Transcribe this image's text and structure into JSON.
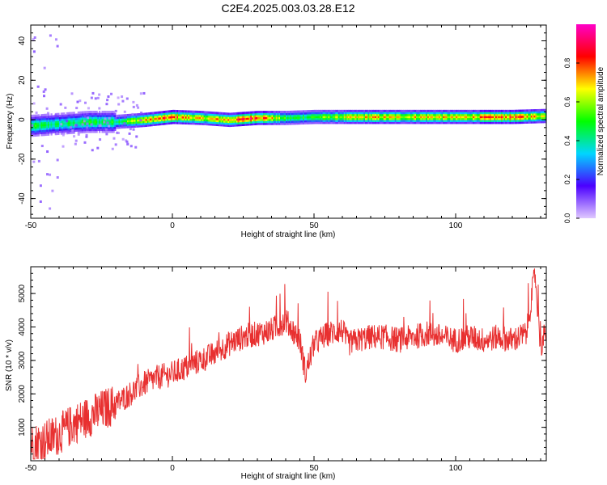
{
  "title": "C2E4.2025.003.03.28.E12",
  "chart_data": [
    {
      "type": "heatmap",
      "xlabel": "Height of straight line (km)",
      "ylabel": "Frequency (Hz)",
      "xlim": [
        -50,
        132
      ],
      "ylim": [
        -50,
        48
      ],
      "xticks": [
        -50,
        0,
        50,
        100
      ],
      "yticks": [
        -40,
        -20,
        0,
        20,
        40
      ],
      "colorbar": {
        "label": "Normalized spectral amplitude",
        "range": [
          0,
          1
        ],
        "ticks": [
          "0.0",
          "0.2",
          "0.4",
          "0.6",
          "0.8"
        ],
        "colors": [
          "#e0c8ff",
          "#4b00ff",
          "#00d6ff",
          "#00ff00",
          "#ffff00",
          "#ff0000",
          "#ff00c8"
        ]
      },
      "ridge": {
        "x": [
          -50,
          -40,
          -30,
          -20,
          -10,
          0,
          10,
          20,
          30,
          40,
          50,
          60,
          70,
          80,
          90,
          100,
          110,
          120,
          132
        ],
        "frequency": [
          -3,
          -2,
          -1,
          -1,
          0,
          1.5,
          1,
          0,
          1,
          1,
          1.5,
          1.5,
          1.5,
          1.5,
          1.5,
          1.5,
          1.5,
          1.5,
          2
        ],
        "amplitude": [
          0.5,
          0.45,
          0.5,
          0.5,
          0.75,
          0.85,
          0.7,
          0.8,
          0.95,
          0.5,
          0.55,
          0.65,
          0.75,
          0.7,
          0.75,
          0.7,
          0.8,
          0.85,
          0.7
        ]
      }
    },
    {
      "type": "line",
      "xlabel": "Height of straight line (km)",
      "ylabel": "SNR (10 * v/v)",
      "xlim": [
        -50,
        132
      ],
      "ylim": [
        0,
        5800
      ],
      "xticks": [
        -50,
        0,
        50,
        100
      ],
      "yticks": [
        1000,
        2000,
        3000,
        4000,
        5000
      ],
      "series": [
        {
          "color": "#e83030",
          "x": [
            -50,
            -45,
            -40,
            -35,
            -30,
            -25,
            -20,
            -15,
            -10,
            -5,
            0,
            5,
            10,
            15,
            20,
            25,
            30,
            35,
            40,
            45,
            47,
            50,
            55,
            60,
            62,
            65,
            70,
            75,
            80,
            85,
            90,
            95,
            100,
            105,
            110,
            115,
            120,
            125,
            128,
            130,
            132
          ],
          "values": [
            500,
            600,
            800,
            1100,
            1300,
            1500,
            1700,
            2000,
            2300,
            2500,
            2600,
            2800,
            3000,
            3200,
            3500,
            3700,
            3800,
            3900,
            4200,
            3600,
            2600,
            3500,
            3800,
            3900,
            3500,
            3600,
            3700,
            3700,
            3600,
            3700,
            3800,
            3700,
            3600,
            3700,
            3600,
            3700,
            3600,
            3800,
            5600,
            3400,
            3900
          ]
        }
      ]
    }
  ]
}
